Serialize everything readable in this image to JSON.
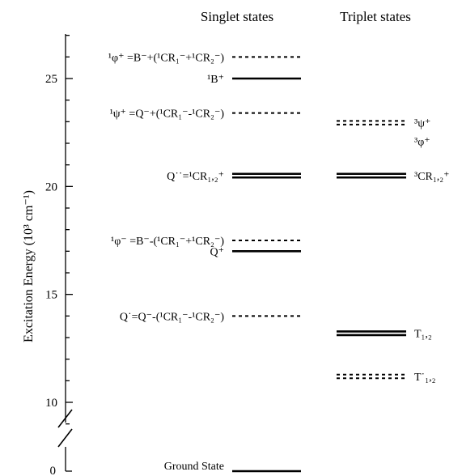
{
  "chart_data": {
    "type": "energy-level diagram",
    "ylabel": "Excitation Energy (10³ cm⁻¹)",
    "y_ticks": [
      10,
      15,
      20,
      25
    ],
    "y_lower_tick": 0,
    "ylim": [
      9,
      27
    ],
    "axis_break": true,
    "columns": [
      {
        "id": "singlet",
        "title": "Singlet states"
      },
      {
        "id": "triplet",
        "title": "Triplet states"
      }
    ],
    "levels": [
      {
        "column": "singlet",
        "energy": 26.0,
        "style": "dashed",
        "count": 1,
        "label": "¹φ⁺ =B⁻+(¹CR₁⁻+¹CR₂⁻)",
        "label_side": "left"
      },
      {
        "column": "singlet",
        "energy": 25.0,
        "style": "solid",
        "count": 1,
        "label": "¹B⁺",
        "label_side": "left"
      },
      {
        "column": "singlet",
        "energy": 23.4,
        "style": "dashed",
        "count": 1,
        "label": "¹ψ⁺ =Q⁻+(¹CR₁⁻-¹CR₂⁻)",
        "label_side": "left"
      },
      {
        "column": "singlet",
        "energy": 20.5,
        "style": "solid",
        "count": 2,
        "label": "Q˙˙=¹CR₁,₂⁺",
        "label_side": "left"
      },
      {
        "column": "singlet",
        "energy": 17.5,
        "style": "dashed",
        "count": 1,
        "label": "¹φ⁻ =B⁻-(¹CR₁⁻+¹CR₂⁻)",
        "label_side": "left"
      },
      {
        "column": "singlet",
        "energy": 17.0,
        "style": "solid",
        "count": 1,
        "label": "Q⁺",
        "label_side": "left"
      },
      {
        "column": "singlet",
        "energy": 14.0,
        "style": "dashed",
        "count": 1,
        "label": "Q˙=Q⁻-(¹CR₁⁻-¹CR₂⁻)",
        "label_side": "left"
      },
      {
        "column": "triplet",
        "energy": 22.5,
        "style": "dashed",
        "count": 2,
        "label": "³ψ⁺",
        "label_side": "right"
      },
      {
        "column": "triplet",
        "energy": 22.1,
        "style": "none",
        "count": 0,
        "label": "³φ⁺",
        "label_side": "right"
      },
      {
        "column": "triplet",
        "energy": 20.5,
        "style": "solid",
        "count": 2,
        "label": "³CR₁,₂⁺",
        "label_side": "right"
      },
      {
        "column": "triplet",
        "energy": 13.2,
        "style": "solid",
        "count": 2,
        "label": "T₁,₂",
        "label_side": "right"
      },
      {
        "column": "triplet",
        "energy": 11.2,
        "style": "dashed",
        "count": 2,
        "label": "T˙₁,₂",
        "label_side": "right"
      }
    ],
    "ground_state": {
      "column": "singlet",
      "energy": 0,
      "style": "solid",
      "label": "Ground State"
    }
  }
}
